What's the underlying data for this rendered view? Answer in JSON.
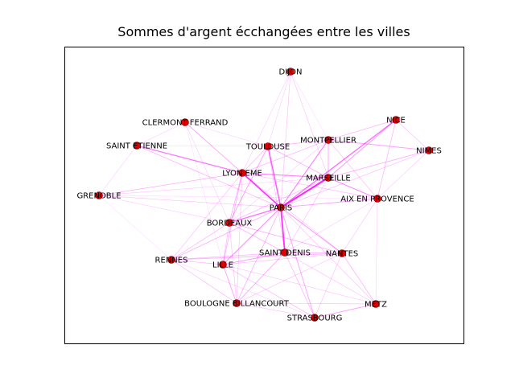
{
  "title": "Sommes d'argent écchangées entre les villes",
  "colors": {
    "node": "#e00000",
    "node_stroke": "#8b0000",
    "edge": "#ff00ff",
    "frame": "#000000"
  },
  "nodes": [
    {
      "id": "dijon",
      "label": "DIJON"
    },
    {
      "id": "nice",
      "label": "NICE"
    },
    {
      "id": "clermont",
      "label": "CLERMONT FERRAND"
    },
    {
      "id": "montpellier",
      "label": "MONTPELLIER"
    },
    {
      "id": "nimes",
      "label": "NIMES"
    },
    {
      "id": "saint-etienne",
      "label": "SAINT ETIENNE"
    },
    {
      "id": "toulouse",
      "label": "TOULOUSE"
    },
    {
      "id": "lyon",
      "label": "LYON EME"
    },
    {
      "id": "marseille",
      "label": "MARSEILLE"
    },
    {
      "id": "grenoble",
      "label": "GRENOBLE"
    },
    {
      "id": "aix",
      "label": "AIX EN PROVENCE"
    },
    {
      "id": "paris",
      "label": "PARIS"
    },
    {
      "id": "bordeaux",
      "label": "BORDEAUX"
    },
    {
      "id": "saint-denis",
      "label": "SAINT DENIS"
    },
    {
      "id": "nantes",
      "label": "NANTES"
    },
    {
      "id": "rennes",
      "label": "RENNES"
    },
    {
      "id": "lille",
      "label": "LILLE"
    },
    {
      "id": "boulogne",
      "label": "BOULOGNE BILLANCOURT"
    },
    {
      "id": "metz",
      "label": "METZ"
    },
    {
      "id": "strasbourg",
      "label": "STRASBOURG"
    }
  ],
  "edges": [
    {
      "source": "paris",
      "target": "marseille",
      "weight": 1.0
    },
    {
      "source": "paris",
      "target": "saint-denis",
      "weight": 0.9
    },
    {
      "source": "paris",
      "target": "lyon",
      "weight": 0.85
    },
    {
      "source": "paris",
      "target": "toulouse",
      "weight": 0.7
    },
    {
      "source": "paris",
      "target": "bordeaux",
      "weight": 0.6
    },
    {
      "source": "paris",
      "target": "nice",
      "weight": 0.6
    },
    {
      "source": "paris",
      "target": "montpellier",
      "weight": 0.5
    },
    {
      "source": "paris",
      "target": "lille",
      "weight": 0.45
    },
    {
      "source": "paris",
      "target": "nantes",
      "weight": 0.4
    },
    {
      "source": "paris",
      "target": "strasbourg",
      "weight": 0.35
    },
    {
      "source": "paris",
      "target": "aix",
      "weight": 0.35
    },
    {
      "source": "paris",
      "target": "rennes",
      "weight": 0.3
    },
    {
      "source": "paris",
      "target": "boulogne",
      "weight": 0.3
    },
    {
      "source": "paris",
      "target": "dijon",
      "weight": 0.2
    },
    {
      "source": "paris",
      "target": "grenoble",
      "weight": 0.2
    },
    {
      "source": "paris",
      "target": "metz",
      "weight": 0.2
    },
    {
      "source": "paris",
      "target": "saint-etienne",
      "weight": 0.25
    },
    {
      "source": "paris",
      "target": "nimes",
      "weight": 0.2
    },
    {
      "source": "paris",
      "target": "clermont",
      "weight": 0.2
    },
    {
      "source": "lyon",
      "target": "saint-etienne",
      "weight": 0.55
    },
    {
      "source": "lyon",
      "target": "marseille",
      "weight": 0.5
    },
    {
      "source": "lyon",
      "target": "grenoble",
      "weight": 0.3
    },
    {
      "source": "lyon",
      "target": "clermont",
      "weight": 0.25
    },
    {
      "source": "lyon",
      "target": "bordeaux",
      "weight": 0.3
    },
    {
      "source": "lyon",
      "target": "lille",
      "weight": 0.3
    },
    {
      "source": "lyon",
      "target": "toulouse",
      "weight": 0.25
    },
    {
      "source": "lyon",
      "target": "rennes",
      "weight": 0.2
    },
    {
      "source": "lyon",
      "target": "montpellier",
      "weight": 0.25
    },
    {
      "source": "lyon",
      "target": "aix",
      "weight": 0.2
    },
    {
      "source": "lyon",
      "target": "nantes",
      "weight": 0.2
    },
    {
      "source": "lyon",
      "target": "boulogne",
      "weight": 0.2
    },
    {
      "source": "lyon",
      "target": "dijon",
      "weight": 0.15
    },
    {
      "source": "marseille",
      "target": "nice",
      "weight": 0.4
    },
    {
      "source": "marseille",
      "target": "aix",
      "weight": 0.45
    },
    {
      "source": "marseille",
      "target": "montpellier",
      "weight": 0.35
    },
    {
      "source": "marseille",
      "target": "nimes",
      "weight": 0.3
    },
    {
      "source": "marseille",
      "target": "toulouse",
      "weight": 0.3
    },
    {
      "source": "marseille",
      "target": "bordeaux",
      "weight": 0.25
    },
    {
      "source": "marseille",
      "target": "grenoble",
      "weight": 0.15
    },
    {
      "source": "marseille",
      "target": "saint-denis",
      "weight": 0.2
    },
    {
      "source": "marseille",
      "target": "dijon",
      "weight": 0.1
    },
    {
      "source": "montpellier",
      "target": "nimes",
      "weight": 0.35
    },
    {
      "source": "montpellier",
      "target": "nice",
      "weight": 0.25
    },
    {
      "source": "montpellier",
      "target": "toulouse",
      "weight": 0.3
    },
    {
      "source": "montpellier",
      "target": "aix",
      "weight": 0.2
    },
    {
      "source": "montpellier",
      "target": "bordeaux",
      "weight": 0.15
    },
    {
      "source": "nice",
      "target": "aix",
      "weight": 0.25
    },
    {
      "source": "nice",
      "target": "nimes",
      "weight": 0.2
    },
    {
      "source": "toulouse",
      "target": "bordeaux",
      "weight": 0.35
    },
    {
      "source": "toulouse",
      "target": "dijon",
      "weight": 0.15
    },
    {
      "source": "toulouse",
      "target": "saint-denis",
      "weight": 0.2
    },
    {
      "source": "toulouse",
      "target": "clermont",
      "weight": 0.15
    },
    {
      "source": "bordeaux",
      "target": "rennes",
      "weight": 0.25
    },
    {
      "source": "bordeaux",
      "target": "lille",
      "weight": 0.25
    },
    {
      "source": "bordeaux",
      "target": "nantes",
      "weight": 0.3
    },
    {
      "source": "bordeaux",
      "target": "saint-denis",
      "weight": 0.25
    },
    {
      "source": "bordeaux",
      "target": "grenoble",
      "weight": 0.15
    },
    {
      "source": "bordeaux",
      "target": "boulogne",
      "weight": 0.2
    },
    {
      "source": "saint-denis",
      "target": "lille",
      "weight": 0.35
    },
    {
      "source": "saint-denis",
      "target": "boulogne",
      "weight": 0.35
    },
    {
      "source": "saint-denis",
      "target": "nantes",
      "weight": 0.3
    },
    {
      "source": "saint-denis",
      "target": "rennes",
      "weight": 0.25
    },
    {
      "source": "saint-denis",
      "target": "metz",
      "weight": 0.2
    },
    {
      "source": "saint-denis",
      "target": "strasbourg",
      "weight": 0.25
    },
    {
      "source": "saint-denis",
      "target": "aix",
      "weight": 0.15
    },
    {
      "source": "nantes",
      "target": "rennes",
      "weight": 0.3
    },
    {
      "source": "nantes",
      "target": "metz",
      "weight": 0.25
    },
    {
      "source": "nantes",
      "target": "strasbourg",
      "weight": 0.2
    },
    {
      "source": "nantes",
      "target": "aix",
      "weight": 0.2
    },
    {
      "source": "nantes",
      "target": "lille",
      "weight": 0.2
    },
    {
      "source": "nantes",
      "target": "boulogne",
      "weight": 0.2
    },
    {
      "source": "metz",
      "target": "strasbourg",
      "weight": 0.35
    },
    {
      "source": "metz",
      "target": "lille",
      "weight": 0.2
    },
    {
      "source": "metz",
      "target": "boulogne",
      "weight": 0.2
    },
    {
      "source": "strasbourg",
      "target": "lille",
      "weight": 0.25
    },
    {
      "source": "strasbourg",
      "target": "boulogne",
      "weight": 0.2
    },
    {
      "source": "strasbourg",
      "target": "rennes",
      "weight": 0.15
    },
    {
      "source": "lille",
      "target": "rennes",
      "weight": 0.25
    },
    {
      "source": "lille",
      "target": "boulogne",
      "weight": 0.35
    },
    {
      "source": "rennes",
      "target": "boulogne",
      "weight": 0.25
    },
    {
      "source": "rennes",
      "target": "grenoble",
      "weight": 0.1
    },
    {
      "source": "grenoble",
      "target": "saint-etienne",
      "weight": 0.15
    },
    {
      "source": "grenoble",
      "target": "aix",
      "weight": 0.1
    },
    {
      "source": "saint-etienne",
      "target": "clermont",
      "weight": 0.15
    },
    {
      "source": "saint-etienne",
      "target": "toulouse",
      "weight": 0.1
    },
    {
      "source": "clermont",
      "target": "bordeaux",
      "weight": 0.15
    },
    {
      "source": "clermont",
      "target": "lille",
      "weight": 0.1
    },
    {
      "source": "dijon",
      "target": "marseille",
      "weight": 0.1
    },
    {
      "source": "dijon",
      "target": "montpellier",
      "weight": 0.1
    },
    {
      "source": "aix",
      "target": "nimes",
      "weight": 0.15
    },
    {
      "source": "aix",
      "target": "metz",
      "weight": 0.15
    }
  ]
}
